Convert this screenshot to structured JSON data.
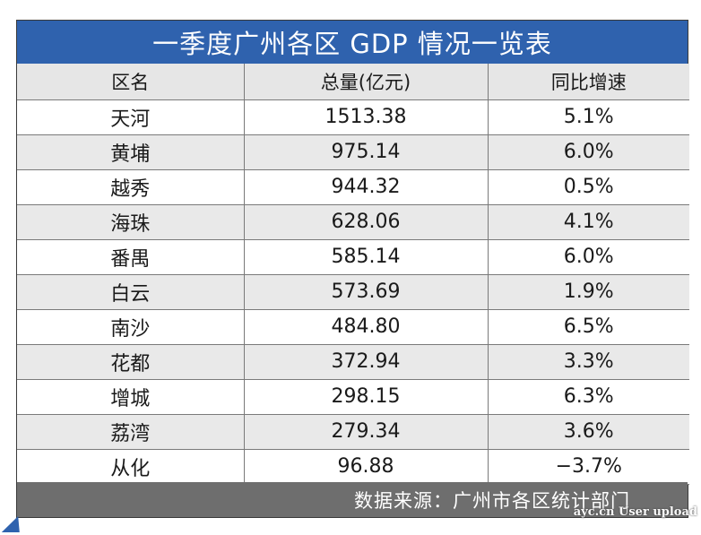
{
  "title": "一季度广州各区 GDP 情况一览表",
  "chart_data": {
    "type": "table",
    "title": "一季度广州各区 GDP 情况一览表",
    "columns": [
      "区名",
      "总量(亿元)",
      "同比增速"
    ],
    "rows": [
      [
        "天河",
        "1513.38",
        "5.1%"
      ],
      [
        "黄埔",
        "975.14",
        "6.0%"
      ],
      [
        "越秀",
        "944.32",
        "0.5%"
      ],
      [
        "海珠",
        "628.06",
        "4.1%"
      ],
      [
        "番禺",
        "585.14",
        "6.0%"
      ],
      [
        "白云",
        "573.69",
        "1.9%"
      ],
      [
        "南沙",
        "484.80",
        "6.5%"
      ],
      [
        "花都",
        "372.94",
        "3.3%"
      ],
      [
        "增城",
        "298.15",
        "6.3%"
      ],
      [
        "荔湾",
        "279.34",
        "3.6%"
      ],
      [
        "从化",
        "96.88",
        "−3.7%"
      ]
    ]
  },
  "footer": "数据来源：广州市各区统计部门",
  "watermark": "ayc.cn User upload",
  "colors": {
    "title_bg": "#2f62ae",
    "header_bg": "#e6e6e6",
    "stripe_bg": "#e9e9e9",
    "footer_bg": "#6e6e6e"
  }
}
